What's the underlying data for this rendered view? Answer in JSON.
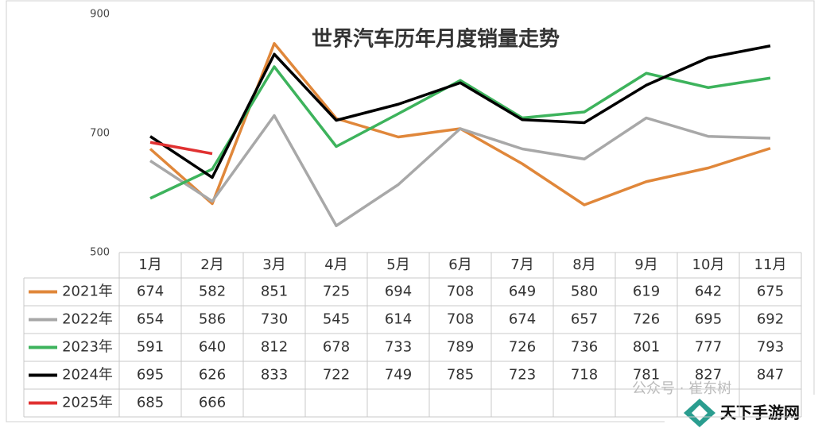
{
  "chart_data": {
    "type": "line",
    "title": "世界汽车历年月度销量走势",
    "categories": [
      "1月",
      "2月",
      "3月",
      "4月",
      "5月",
      "6月",
      "7月",
      "8月",
      "9月",
      "10月",
      "11月"
    ],
    "ylim": [
      500,
      900
    ],
    "yticks": [
      500,
      700,
      900
    ],
    "grid": false,
    "series": [
      {
        "name": "2021年",
        "color": "#e0873a",
        "values": [
          674,
          582,
          851,
          725,
          694,
          708,
          649,
          580,
          619,
          642,
          675
        ]
      },
      {
        "name": "2022年",
        "color": "#a8a8a8",
        "values": [
          654,
          586,
          730,
          545,
          614,
          708,
          674,
          657,
          726,
          695,
          692
        ]
      },
      {
        "name": "2023年",
        "color": "#3db35c",
        "values": [
          591,
          640,
          812,
          678,
          733,
          789,
          726,
          736,
          801,
          777,
          793
        ]
      },
      {
        "name": "2024年",
        "color": "#000000",
        "values": [
          695,
          626,
          833,
          722,
          749,
          785,
          723,
          718,
          781,
          827,
          847
        ]
      },
      {
        "name": "2025年",
        "color": "#e03131",
        "values": [
          685,
          666,
          null,
          null,
          null,
          null,
          null,
          null,
          null,
          null,
          null
        ]
      }
    ]
  },
  "watermark": {
    "wechat": "公众号 · 崔东树",
    "site": "天下手游网"
  }
}
